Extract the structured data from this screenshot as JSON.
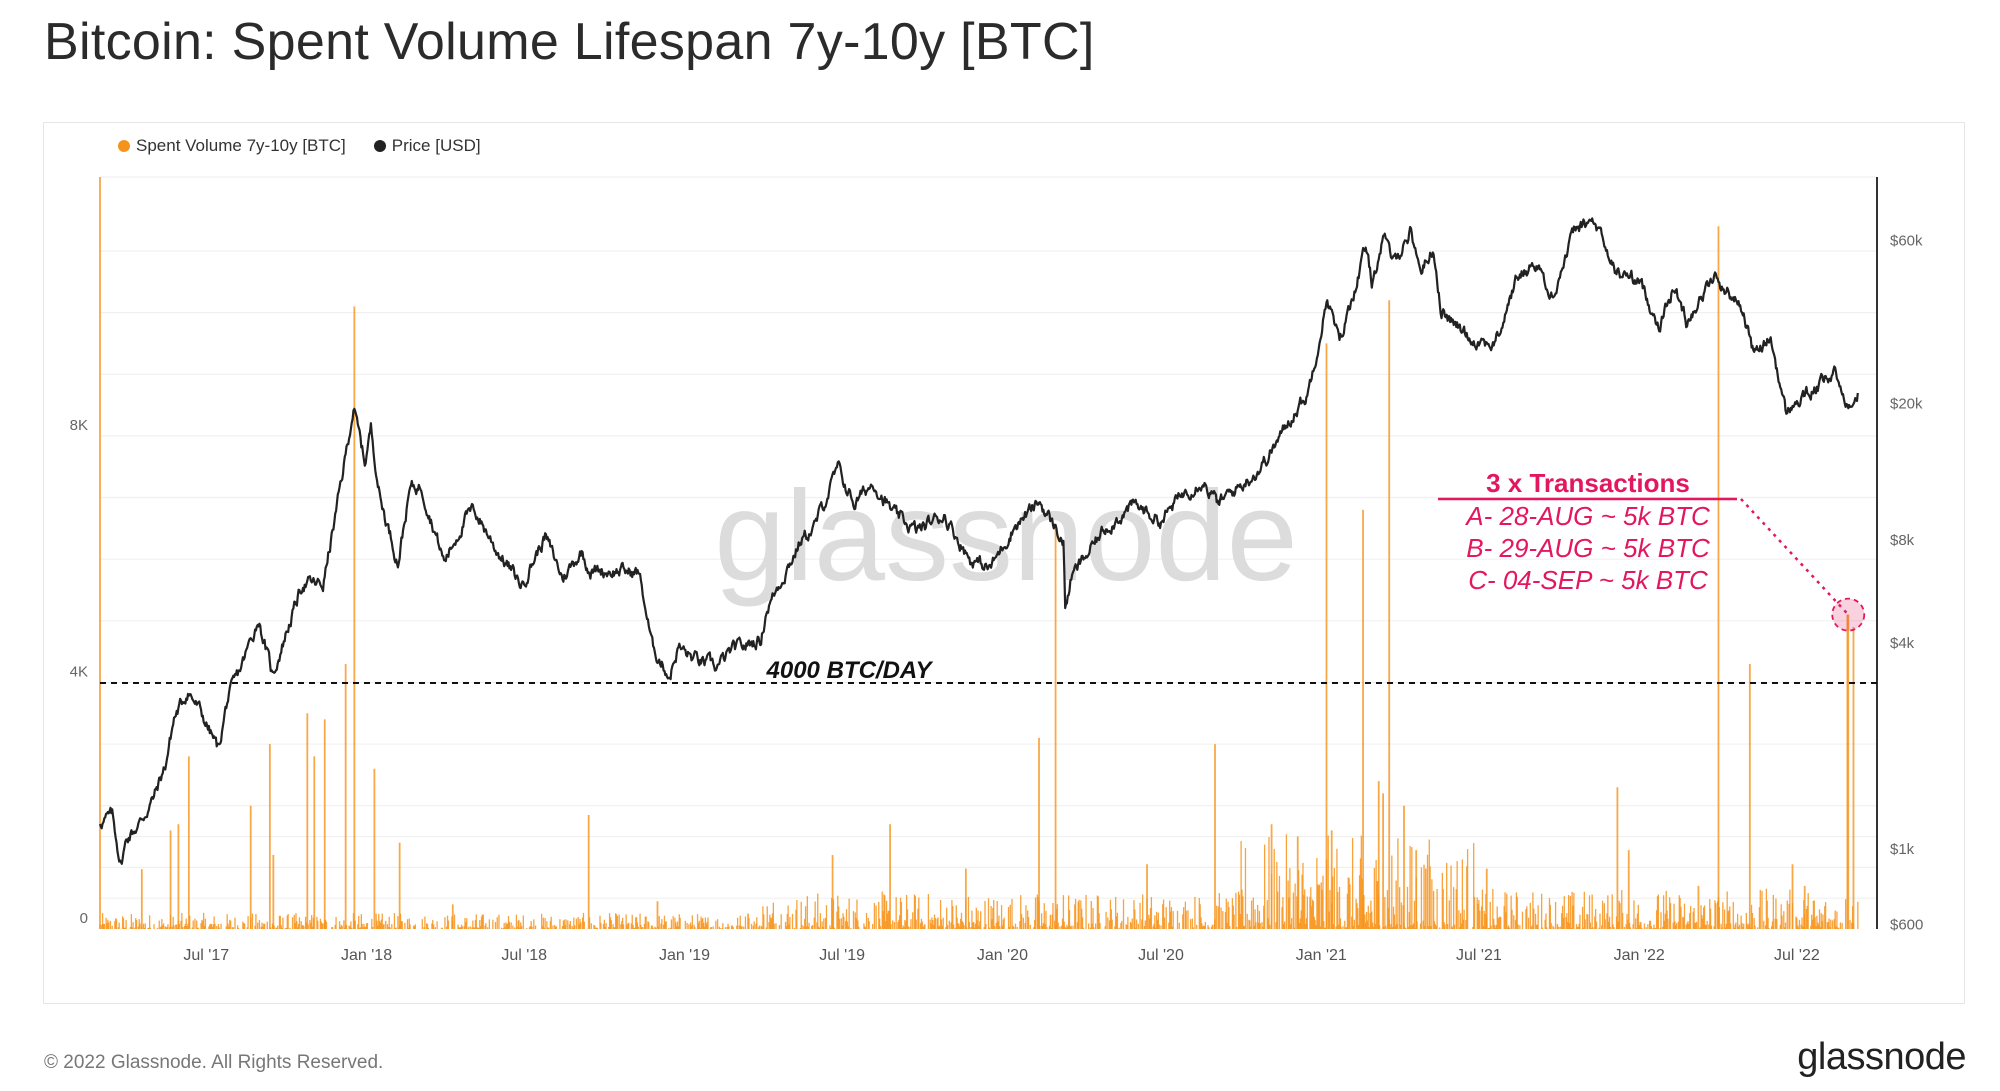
{
  "header": {
    "title": "Bitcoin: Spent Volume Lifespan 7y-10y [BTC]"
  },
  "footer": {
    "copyright": "© 2022 Glassnode. All Rights Reserved.",
    "logo_text": "glassnode"
  },
  "chart_data": {
    "type": "bar+line",
    "title": "Bitcoin: Spent Volume Lifespan 7y-10y [BTC]",
    "watermark": "glassnode",
    "legend": [
      {
        "label": "Spent Volume 7y-10y [BTC]",
        "color": "#f7931a"
      },
      {
        "label": "Price [USD]",
        "color": "#222222"
      }
    ],
    "legend_position": "top-left",
    "x_range": [
      "2017-03-01",
      "2022-10-01"
    ],
    "x_ticks": [
      {
        "date": "2017-07-01",
        "label": "Jul '17"
      },
      {
        "date": "2018-01-01",
        "label": "Jan '18"
      },
      {
        "date": "2018-07-01",
        "label": "Jul '18"
      },
      {
        "date": "2019-01-01",
        "label": "Jan '19"
      },
      {
        "date": "2019-07-01",
        "label": "Jul '19"
      },
      {
        "date": "2020-01-01",
        "label": "Jan '20"
      },
      {
        "date": "2020-07-01",
        "label": "Jul '20"
      },
      {
        "date": "2021-01-01",
        "label": "Jan '21"
      },
      {
        "date": "2021-07-01",
        "label": "Jul '21"
      },
      {
        "date": "2022-01-01",
        "label": "Jan '22"
      },
      {
        "date": "2022-07-01",
        "label": "Jul '22"
      }
    ],
    "left_axis": {
      "label": "Spent Volume [BTC]",
      "range": [
        0,
        12200
      ],
      "ticks": [
        {
          "v": 0,
          "label": "0"
        },
        {
          "v": 4000,
          "label": "4K"
        },
        {
          "v": 8000,
          "label": "8K"
        }
      ]
    },
    "right_axis": {
      "label": "Price [USD]",
      "scale": "log",
      "range": [
        583,
        92000
      ],
      "ticks": [
        {
          "v": 600,
          "label": "$600"
        },
        {
          "v": 1000,
          "label": "$1k"
        },
        {
          "v": 4000,
          "label": "$4k"
        },
        {
          "v": 8000,
          "label": "$8k"
        },
        {
          "v": 20000,
          "label": "$20k"
        },
        {
          "v": 60000,
          "label": "$60k"
        }
      ]
    },
    "volume_spikes": [
      [
        "2017-03-01",
        14000
      ],
      [
        "2017-04-18",
        970
      ],
      [
        "2017-05-21",
        1600
      ],
      [
        "2017-05-30",
        1700
      ],
      [
        "2017-06-11",
        2800
      ],
      [
        "2017-08-21",
        2000
      ],
      [
        "2017-09-12",
        3000
      ],
      [
        "2017-09-16",
        1200
      ],
      [
        "2017-10-25",
        3500
      ],
      [
        "2017-11-02",
        2800
      ],
      [
        "2017-11-14",
        3400
      ],
      [
        "2017-12-08",
        4300
      ],
      [
        "2017-12-18",
        10100
      ],
      [
        "2018-01-10",
        2600
      ],
      [
        "2018-02-08",
        1400
      ],
      [
        "2018-04-10",
        400
      ],
      [
        "2018-09-13",
        1850
      ],
      [
        "2018-12-01",
        450
      ],
      [
        "2019-03-15",
        250
      ],
      [
        "2019-06-20",
        1200
      ],
      [
        "2019-08-25",
        1700
      ],
      [
        "2019-11-20",
        980
      ],
      [
        "2020-02-12",
        3100
      ],
      [
        "2020-03-02",
        6500
      ],
      [
        "2020-06-15",
        1050
      ],
      [
        "2020-09-01",
        3000
      ],
      [
        "2020-11-05",
        1700
      ],
      [
        "2020-12-05",
        1500
      ],
      [
        "2021-01-07",
        9500
      ],
      [
        "2021-01-13",
        1600
      ],
      [
        "2021-02-18",
        6800
      ],
      [
        "2021-03-08",
        2400
      ],
      [
        "2021-03-13",
        2200
      ],
      [
        "2021-03-20",
        10200
      ],
      [
        "2021-04-06",
        2000
      ],
      [
        "2021-04-20",
        1280
      ],
      [
        "2021-05-01",
        980
      ],
      [
        "2021-07-10",
        980
      ],
      [
        "2021-12-07",
        2300
      ],
      [
        "2021-12-20",
        1280
      ],
      [
        "2022-03-10",
        700
      ],
      [
        "2022-04-02",
        11400
      ],
      [
        "2022-05-08",
        4300
      ],
      [
        "2022-06-26",
        1050
      ],
      [
        "2022-07-10",
        700
      ],
      [
        "2022-08-28",
        5100
      ],
      [
        "2022-08-29",
        5100
      ],
      [
        "2022-09-04",
        4900
      ]
    ],
    "baseline_activity": [
      {
        "from": "2017-03-01",
        "to": "2019-03-31",
        "level": 120
      },
      {
        "from": "2019-04-01",
        "to": "2020-09-30",
        "level": 280
      },
      {
        "from": "2020-10-01",
        "to": "2021-06-30",
        "level": 700
      },
      {
        "from": "2021-07-01",
        "to": "2022-09-09",
        "level": 300
      }
    ],
    "price_usd": [
      [
        "2017-03-01",
        1200
      ],
      [
        "2017-03-15",
        1250
      ],
      [
        "2017-03-25",
        900
      ],
      [
        "2017-04-01",
        1080
      ],
      [
        "2017-04-15",
        1180
      ],
      [
        "2017-05-01",
        1400
      ],
      [
        "2017-05-15",
        1750
      ],
      [
        "2017-05-25",
        2400
      ],
      [
        "2017-06-10",
        2900
      ],
      [
        "2017-06-25",
        2500
      ],
      [
        "2017-07-15",
        1950
      ],
      [
        "2017-07-25",
        2700
      ],
      [
        "2017-08-10",
        3400
      ],
      [
        "2017-08-30",
        4700
      ],
      [
        "2017-09-15",
        3200
      ],
      [
        "2017-10-01",
        4300
      ],
      [
        "2017-10-20",
        6000
      ],
      [
        "2017-11-12",
        5900
      ],
      [
        "2017-11-28",
        9900
      ],
      [
        "2017-12-17",
        19500
      ],
      [
        "2017-12-30",
        13500
      ],
      [
        "2018-01-06",
        17000
      ],
      [
        "2018-01-17",
        10500
      ],
      [
        "2018-02-06",
        6900
      ],
      [
        "2018-02-20",
        11300
      ],
      [
        "2018-03-05",
        11500
      ],
      [
        "2018-03-31",
        6900
      ],
      [
        "2018-04-25",
        9300
      ],
      [
        "2018-05-05",
        9800
      ],
      [
        "2018-05-30",
        7500
      ],
      [
        "2018-06-28",
        5900
      ],
      [
        "2018-07-25",
        8200
      ],
      [
        "2018-08-14",
        6200
      ],
      [
        "2018-09-05",
        7400
      ],
      [
        "2018-09-15",
        6500
      ],
      [
        "2018-10-15",
        6500
      ],
      [
        "2018-11-10",
        6400
      ],
      [
        "2018-11-25",
        3900
      ],
      [
        "2018-12-15",
        3200
      ],
      [
        "2018-12-25",
        3900
      ],
      [
        "2019-01-10",
        3600
      ],
      [
        "2019-02-07",
        3400
      ],
      [
        "2019-02-25",
        3800
      ],
      [
        "2019-03-30",
        4100
      ],
      [
        "2019-04-05",
        5000
      ],
      [
        "2019-05-15",
        8000
      ],
      [
        "2019-05-30",
        8700
      ],
      [
        "2019-06-26",
        12900
      ],
      [
        "2019-07-15",
        10200
      ],
      [
        "2019-08-06",
        11800
      ],
      [
        "2019-08-29",
        9500
      ],
      [
        "2019-09-24",
        8500
      ],
      [
        "2019-10-26",
        9500
      ],
      [
        "2019-11-25",
        7000
      ],
      [
        "2019-12-18",
        6600
      ],
      [
        "2020-01-15",
        8800
      ],
      [
        "2020-02-13",
        10300
      ],
      [
        "2020-03-11",
        7900
      ],
      [
        "2020-03-13",
        5000
      ],
      [
        "2020-03-20",
        6200
      ],
      [
        "2020-04-30",
        8800
      ],
      [
        "2020-06-01",
        10100
      ],
      [
        "2020-07-01",
        9100
      ],
      [
        "2020-07-27",
        11000
      ],
      [
        "2020-08-17",
        12000
      ],
      [
        "2020-09-05",
        10200
      ],
      [
        "2020-10-21",
        12800
      ],
      [
        "2020-11-15",
        16000
      ],
      [
        "2020-12-01",
        19000
      ],
      [
        "2020-12-16",
        21000
      ],
      [
        "2021-01-08",
        41000
      ],
      [
        "2021-01-22",
        30000
      ],
      [
        "2021-02-21",
        57000
      ],
      [
        "2021-02-28",
        45000
      ],
      [
        "2021-03-13",
        61000
      ],
      [
        "2021-03-25",
        52000
      ],
      [
        "2021-04-14",
        64000
      ],
      [
        "2021-04-25",
        49000
      ],
      [
        "2021-05-10",
        57000
      ],
      [
        "2021-05-19",
        37000
      ],
      [
        "2021-06-22",
        31000
      ],
      [
        "2021-07-20",
        29800
      ],
      [
        "2021-08-14",
        47000
      ],
      [
        "2021-09-07",
        52000
      ],
      [
        "2021-09-21",
        40000
      ],
      [
        "2021-10-20",
        65000
      ],
      [
        "2021-11-10",
        68000
      ],
      [
        "2021-12-04",
        49000
      ],
      [
        "2021-12-31",
        46000
      ],
      [
        "2022-01-24",
        34000
      ],
      [
        "2022-02-10",
        44000
      ],
      [
        "2022-02-24",
        35000
      ],
      [
        "2022-03-28",
        47000
      ],
      [
        "2022-04-30",
        38000
      ],
      [
        "2022-05-12",
        28000
      ],
      [
        "2022-06-01",
        31000
      ],
      [
        "2022-06-18",
        18900
      ],
      [
        "2022-07-10",
        21000
      ],
      [
        "2022-08-14",
        24400
      ],
      [
        "2022-08-28",
        20000
      ],
      [
        "2022-09-09",
        21500
      ]
    ],
    "reference_line": {
      "value": 4000,
      "label": "4000 BTC/DAY"
    },
    "annotation": {
      "title": "3 x Transactions",
      "lines": [
        "A- 28-AUG ~ 5k BTC",
        "B- 29-AUG ~ 5k BTC",
        "C- 04-SEP ~ 5k BTC"
      ],
      "target_date": "2022-08-29",
      "target_value": 5100,
      "color": "#e3175f"
    },
    "colors": {
      "volume": "#f7931a",
      "price": "#222222",
      "grid": "#f0f0f0",
      "axis_text": "#666666"
    }
  }
}
